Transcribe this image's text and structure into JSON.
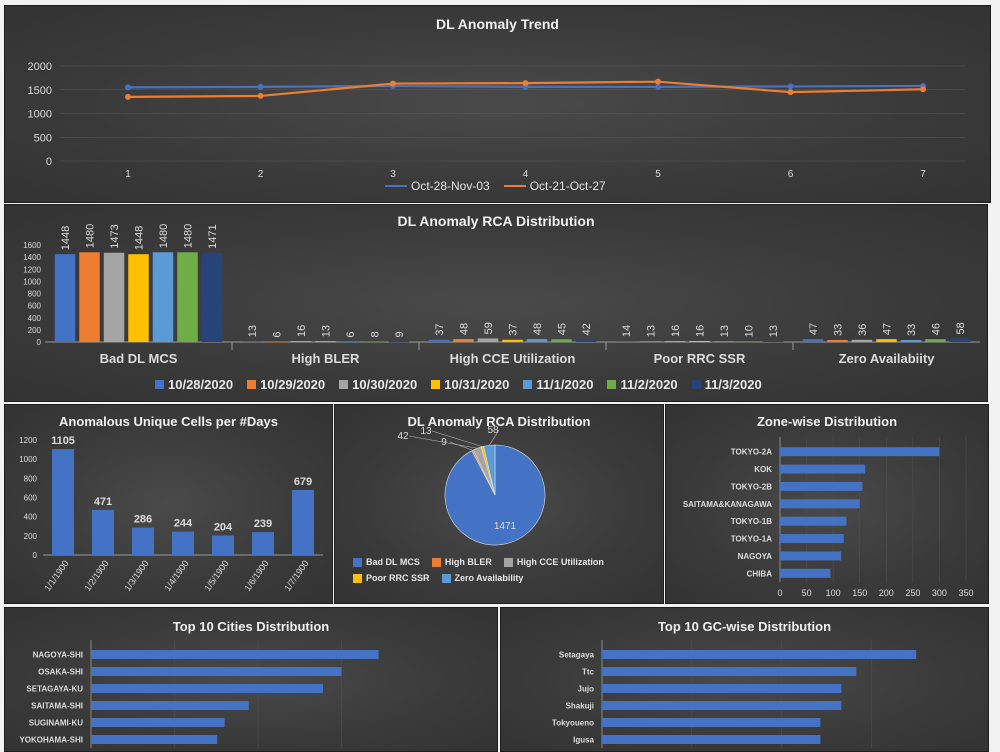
{
  "chart_data": [
    {
      "id": "trend",
      "type": "line",
      "title": "DL Anomaly Trend",
      "x": [
        1,
        2,
        3,
        4,
        5,
        6,
        7
      ],
      "ylim": [
        0,
        2000
      ],
      "yticks": [
        0,
        500,
        1000,
        1500,
        2000
      ],
      "series": [
        {
          "name": "Oct-28-Nov-03",
          "values": [
            1550,
            1560,
            1580,
            1560,
            1560,
            1570,
            1580
          ],
          "color": "#4472c4"
        },
        {
          "name": "Oct-21-Oct-27",
          "values": [
            1350,
            1370,
            1630,
            1640,
            1670,
            1450,
            1510
          ],
          "color": "#ed7d31"
        }
      ],
      "legend": "bottom"
    },
    {
      "id": "rca",
      "type": "bar",
      "title": "DL Anomaly RCA Distribution",
      "categories": [
        "Bad DL MCS",
        "High BLER",
        "High CCE Utilization",
        "Poor RRC SSR",
        "Zero Availabiity"
      ],
      "ylim": [
        0,
        1600
      ],
      "yticks": [
        0,
        200,
        400,
        600,
        800,
        1000,
        1200,
        1400,
        1600
      ],
      "series": [
        {
          "name": "10/28/2020",
          "values": [
            1448,
            13,
            37,
            14,
            47
          ],
          "color": "#4472c4"
        },
        {
          "name": "10/29/2020",
          "values": [
            1480,
            6,
            48,
            13,
            33
          ],
          "color": "#ed7d31"
        },
        {
          "name": "10/30/2020",
          "values": [
            1473,
            16,
            59,
            16,
            36
          ],
          "color": "#a5a5a5"
        },
        {
          "name": "10/31/2020",
          "values": [
            1448,
            13,
            37,
            16,
            47
          ],
          "color": "#ffc000"
        },
        {
          "name": "11/1/2020",
          "values": [
            1480,
            6,
            48,
            13,
            33
          ],
          "color": "#5b9bd5"
        },
        {
          "name": "11/2/2020",
          "values": [
            1480,
            8,
            45,
            10,
            46
          ],
          "color": "#70ad47"
        },
        {
          "name": "11/3/2020",
          "values": [
            1471,
            9,
            42,
            13,
            58
          ],
          "color": "#264478"
        }
      ],
      "legend": "bottom"
    },
    {
      "id": "unique",
      "type": "bar",
      "title": "Anomalous Unique Cells per #Days",
      "categories": [
        "1/1/1900",
        "1/2/1900",
        "1/3/1900",
        "1/4/1900",
        "1/5/1900",
        "1/6/1900",
        "1/7/1900"
      ],
      "values": [
        1105,
        471,
        286,
        244,
        204,
        239,
        679
      ],
      "ylim": [
        0,
        1200
      ],
      "yticks": [
        0,
        200,
        400,
        600,
        800,
        1000,
        1200
      ],
      "color": "#4472c4"
    },
    {
      "id": "pie",
      "type": "pie",
      "title": "DL Anomaly RCA Distribution",
      "labels": [
        "Bad DL MCS",
        "High BLER",
        "High CCE Utilization",
        "Poor RRC SSR",
        "Zero Availability"
      ],
      "values": [
        1471,
        9,
        42,
        13,
        58
      ],
      "colors": [
        "#4472c4",
        "#ed7d31",
        "#a5a5a5",
        "#ffc000",
        "#5b9bd5"
      ],
      "legend": "bottom"
    },
    {
      "id": "zone",
      "type": "bar",
      "orientation": "horizontal",
      "title": "Zone-wise Distribution",
      "categories": [
        "TOKYO-2A",
        "KOK",
        "TOKYO-2B",
        "SAITAMA&KANAGAWA",
        "TOKYO-1B",
        "TOKYO-1A",
        "NAGOYA",
        "CHIBA"
      ],
      "values": [
        300,
        160,
        155,
        150,
        125,
        120,
        115,
        95
      ],
      "xlim": [
        0,
        350
      ],
      "xticks": [
        0,
        50,
        100,
        150,
        200,
        250,
        300,
        350
      ],
      "color": "#4472c4"
    },
    {
      "id": "cities",
      "type": "bar",
      "orientation": "horizontal",
      "title": "Top 10 Cities Distribution",
      "categories": [
        "NAGOYA-SHI",
        "OSAKA-SHI",
        "SETAGAYA-KU",
        "SAITAMA-SHI",
        "SUGINAMI-KU",
        "YOKOHAMA-SHI"
      ],
      "values": [
        155,
        135,
        125,
        85,
        72,
        68
      ],
      "xlim": [
        0,
        180
      ],
      "color": "#4472c4"
    },
    {
      "id": "gc",
      "type": "bar",
      "orientation": "horizontal",
      "title": "Top 10 GC-wise Distribution",
      "categories": [
        "Setagaya",
        "Ttc",
        "Jujo",
        "Shakuji",
        "Tokyoueno",
        "Igusa"
      ],
      "values": [
        105,
        85,
        80,
        80,
        73,
        73
      ],
      "xlim": [
        0,
        120
      ],
      "color": "#4472c4"
    }
  ]
}
